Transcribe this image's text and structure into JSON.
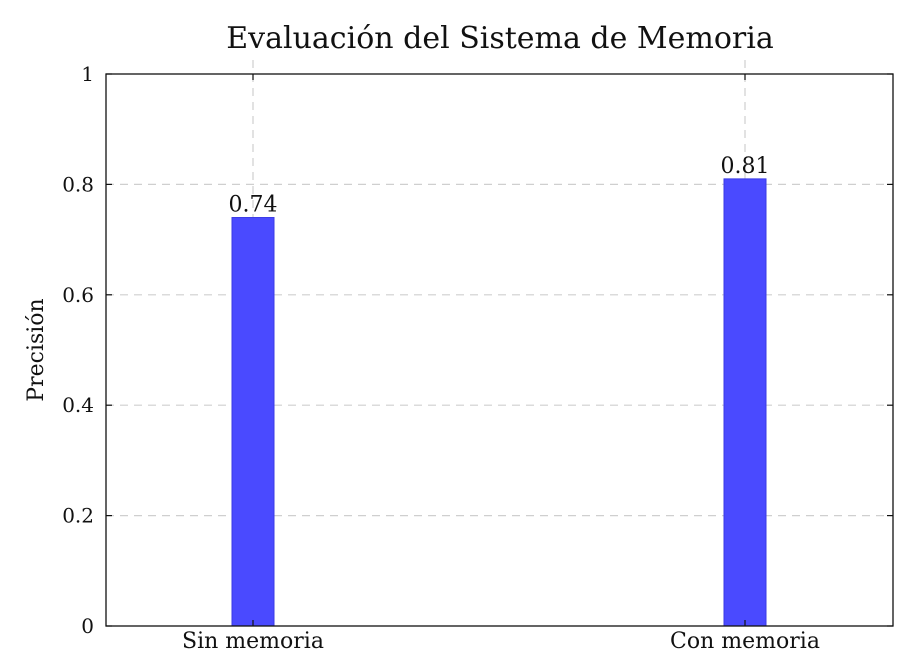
{
  "chart_data": {
    "type": "bar",
    "title": "Evaluación del Sistema de Memoria",
    "xlabel": "",
    "ylabel": "Precisión",
    "categories": [
      "Sin memoria",
      "Con memoria"
    ],
    "values": [
      0.74,
      0.81
    ],
    "value_labels": [
      "0.74",
      "0.81"
    ],
    "ylim": [
      0,
      1
    ],
    "yticks": [
      0,
      0.2,
      0.4,
      0.6,
      0.8,
      1
    ],
    "ytick_labels": [
      "0",
      "0.2",
      "0.4",
      "0.6",
      "0.8",
      "1"
    ],
    "grid": true,
    "bar_color": "#4a4aff"
  }
}
